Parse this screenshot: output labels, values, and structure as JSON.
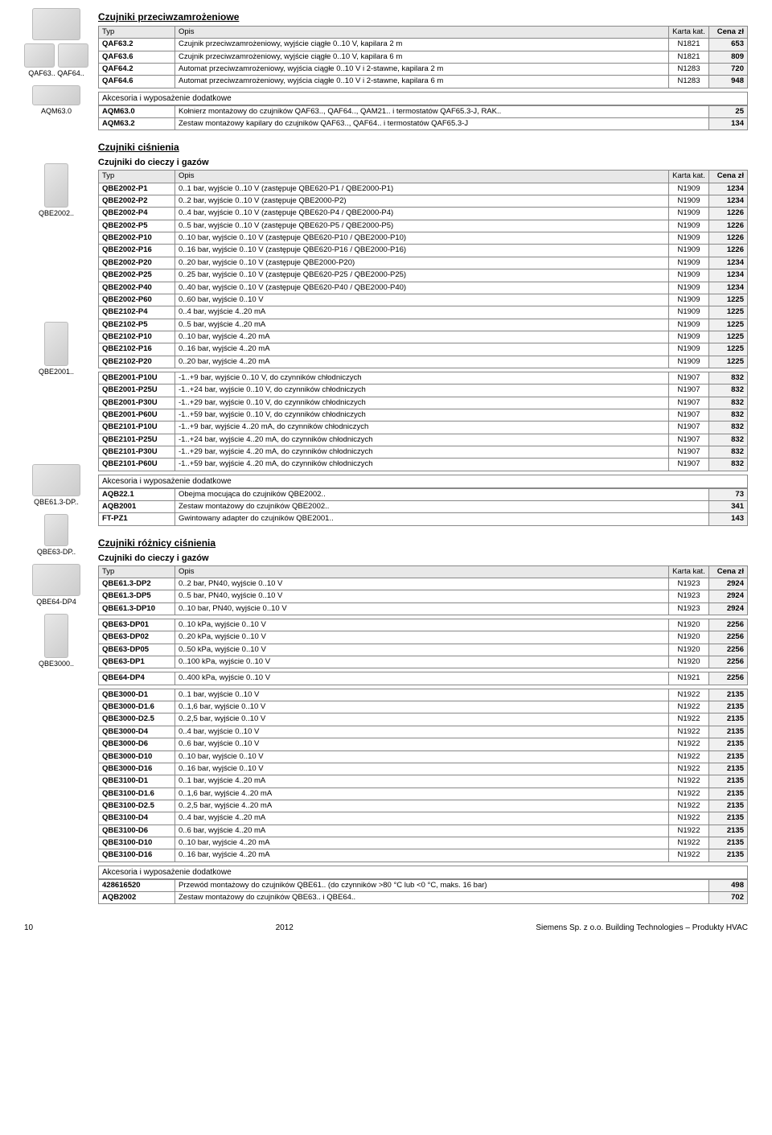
{
  "headers": {
    "typ": "Typ",
    "opis": "Opis",
    "kat": "Karta kat.",
    "cena": "Cena zł"
  },
  "akces_label": "Akcesoria i wyposażenie dodatkowe",
  "labels": {
    "qaf63": "QAF63..",
    "qaf64": "QAF64..",
    "aqm63": "AQM63.0",
    "qbe2002": "QBE2002..",
    "qbe2001": "QBE2001..",
    "qbe61": "QBE61.3-DP..",
    "qbe63": "QBE63-DP..",
    "qbe64": "QBE64-DP4",
    "qbe3000": "QBE3000.."
  },
  "sec1": {
    "title": "Czujniki przeciwzamrożeniowe",
    "rows": [
      {
        "t": "QAF63.2",
        "o": "Czujnik przeciwzamrożeniowy, wyjście ciągłe 0..10 V, kapilara 2 m",
        "k": "N1821",
        "c": "653"
      },
      {
        "t": "QAF63.6",
        "o": "Czujnik przeciwzamrożeniowy, wyjście ciągłe 0..10 V, kapilara 6 m",
        "k": "N1821",
        "c": "809"
      },
      {
        "t": "QAF64.2",
        "o": "Automat przeciwzamrożeniowy, wyjścia ciągłe 0..10 V i 2-stawne, kapilara 2 m",
        "k": "N1283",
        "c": "720"
      },
      {
        "t": "QAF64.6",
        "o": "Automat przeciwzamrożeniowy, wyjścia ciągłe 0..10 V i 2-stawne, kapilara 6 m",
        "k": "N1283",
        "c": "948"
      }
    ],
    "akces": [
      {
        "t": "AQM63.0",
        "o": "Kołnierz montażowy do czujników QAF63.., QAF64.., QAM21.. i termostatów QAF65.3-J, RAK..",
        "c": "25"
      },
      {
        "t": "AQM63.2",
        "o": "Zestaw montażowy kapilary do czujników QAF63.., QAF64.. i termostatów QAF65.3-J",
        "c": "134"
      }
    ]
  },
  "sec2": {
    "title": "Czujniki ciśnienia",
    "sub": "Czujniki do cieczy i gazów",
    "rows": [
      {
        "t": "QBE2002-P1",
        "o": "0..1 bar, wyjście 0..10 V                                                   (zastępuje QBE620-P1 / QBE2000-P1)",
        "k": "N1909",
        "c": "1234"
      },
      {
        "t": "QBE2002-P2",
        "o": "0..2 bar, wyjście 0..10 V                                                            (zastępuje QBE2000-P2)",
        "k": "N1909",
        "c": "1234"
      },
      {
        "t": "QBE2002-P4",
        "o": "0..4 bar, wyjście 0..10 V                                                   (zastępuje QBE620-P4 / QBE2000-P4)",
        "k": "N1909",
        "c": "1226"
      },
      {
        "t": "QBE2002-P5",
        "o": "0..5 bar, wyjście 0..10 V                                                   (zastępuje QBE620-P5 / QBE2000-P5)",
        "k": "N1909",
        "c": "1226"
      },
      {
        "t": "QBE2002-P10",
        "o": "0..10 bar, wyjście 0..10 V                                             (zastępuje QBE620-P10 / QBE2000-P10)",
        "k": "N1909",
        "c": "1226"
      },
      {
        "t": "QBE2002-P16",
        "o": "0..16 bar, wyjście 0..10 V                                             (zastępuje QBE620-P16 / QBE2000-P16)",
        "k": "N1909",
        "c": "1226"
      },
      {
        "t": "QBE2002-P20",
        "o": "0..20 bar, wyjście 0..10 V                                                          (zastępuje QBE2000-P20)",
        "k": "N1909",
        "c": "1234"
      },
      {
        "t": "QBE2002-P25",
        "o": "0..25 bar, wyjście 0..10 V                                             (zastępuje QBE620-P25 / QBE2000-P25)",
        "k": "N1909",
        "c": "1234"
      },
      {
        "t": "QBE2002-P40",
        "o": "0..40 bar, wyjście 0..10 V                                             (zastępuje QBE620-P40 / QBE2000-P40)",
        "k": "N1909",
        "c": "1234"
      },
      {
        "t": "QBE2002-P60",
        "o": "0..60 bar, wyjście 0..10 V",
        "k": "N1909",
        "c": "1225"
      },
      {
        "t": "QBE2102-P4",
        "o": "0..4 bar, wyjście 4..20 mA",
        "k": "N1909",
        "c": "1225"
      },
      {
        "t": "QBE2102-P5",
        "o": "0..5 bar, wyjście 4..20 mA",
        "k": "N1909",
        "c": "1225"
      },
      {
        "t": "QBE2102-P10",
        "o": "0..10 bar, wyjście 4..20 mA",
        "k": "N1909",
        "c": "1225"
      },
      {
        "t": "QBE2102-P16",
        "o": "0..16 bar, wyjście 4..20 mA",
        "k": "N1909",
        "c": "1225"
      },
      {
        "t": "QBE2102-P20",
        "o": "0..20 bar, wyjście 4..20 mA",
        "k": "N1909",
        "c": "1225"
      }
    ],
    "rows2": [
      {
        "t": "QBE2001-P10U",
        "o": "-1..+9 bar, wyjście 0..10 V, do czynników chłodniczych",
        "k": "N1907",
        "c": "832"
      },
      {
        "t": "QBE2001-P25U",
        "o": "-1..+24 bar, wyjście 0..10 V, do czynników chłodniczych",
        "k": "N1907",
        "c": "832"
      },
      {
        "t": "QBE2001-P30U",
        "o": "-1..+29 bar, wyjście 0..10 V, do czynników chłodniczych",
        "k": "N1907",
        "c": "832"
      },
      {
        "t": "QBE2001-P60U",
        "o": "-1..+59 bar, wyjście 0..10 V, do czynników chłodniczych",
        "k": "N1907",
        "c": "832"
      },
      {
        "t": "QBE2101-P10U",
        "o": "-1..+9 bar, wyjście 4..20 mA, do czynników chłodniczych",
        "k": "N1907",
        "c": "832"
      },
      {
        "t": "QBE2101-P25U",
        "o": "-1..+24 bar, wyjście 4..20 mA, do czynników chłodniczych",
        "k": "N1907",
        "c": "832"
      },
      {
        "t": "QBE2101-P30U",
        "o": "-1..+29 bar, wyjście 4..20 mA, do czynników chłodniczych",
        "k": "N1907",
        "c": "832"
      },
      {
        "t": "QBE2101-P60U",
        "o": "-1..+59 bar, wyjście 4..20 mA, do czynników chłodniczych",
        "k": "N1907",
        "c": "832"
      }
    ],
    "akces": [
      {
        "t": "AQB22.1",
        "o": "Obejma mocująca do czujników QBE2002..",
        "c": "73"
      },
      {
        "t": "AQB2001",
        "o": "Zestaw montażowy do czujników QBE2002..",
        "c": "341"
      },
      {
        "t": "FT-PZ1",
        "o": "Gwintowany adapter do czujników QBE2001..",
        "c": "143"
      }
    ]
  },
  "sec3": {
    "title": "Czujniki różnicy ciśnienia",
    "sub": "Czujniki do cieczy i gazów",
    "g1": [
      {
        "t": "QBE61.3-DP2",
        "o": "0..2 bar, PN40, wyjście 0..10 V",
        "k": "N1923",
        "c": "2924"
      },
      {
        "t": "QBE61.3-DP5",
        "o": "0..5 bar, PN40, wyjście 0..10 V",
        "k": "N1923",
        "c": "2924"
      },
      {
        "t": "QBE61.3-DP10",
        "o": "0..10 bar, PN40, wyjście 0..10 V",
        "k": "N1923",
        "c": "2924"
      }
    ],
    "g2": [
      {
        "t": "QBE63-DP01",
        "o": "0..10 kPa, wyjście 0..10 V",
        "k": "N1920",
        "c": "2256"
      },
      {
        "t": "QBE63-DP02",
        "o": "0..20 kPa, wyjście 0..10 V",
        "k": "N1920",
        "c": "2256"
      },
      {
        "t": "QBE63-DP05",
        "o": "0..50 kPa, wyjście 0..10 V",
        "k": "N1920",
        "c": "2256"
      },
      {
        "t": "QBE63-DP1",
        "o": "0..100 kPa, wyjście 0..10 V",
        "k": "N1920",
        "c": "2256"
      }
    ],
    "g3": [
      {
        "t": "QBE64-DP4",
        "o": "0..400 kPa, wyjście 0..10 V",
        "k": "N1921",
        "c": "2256"
      }
    ],
    "g4": [
      {
        "t": "QBE3000-D1",
        "o": "0..1 bar, wyjście 0..10 V",
        "k": "N1922",
        "c": "2135"
      },
      {
        "t": "QBE3000-D1.6",
        "o": "0..1,6 bar, wyjście 0..10 V",
        "k": "N1922",
        "c": "2135"
      },
      {
        "t": "QBE3000-D2.5",
        "o": "0..2,5 bar, wyjście 0..10 V",
        "k": "N1922",
        "c": "2135"
      },
      {
        "t": "QBE3000-D4",
        "o": "0..4 bar, wyjście 0..10 V",
        "k": "N1922",
        "c": "2135"
      },
      {
        "t": "QBE3000-D6",
        "o": "0..6 bar, wyjście 0..10 V",
        "k": "N1922",
        "c": "2135"
      },
      {
        "t": "QBE3000-D10",
        "o": "0..10 bar, wyjście 0..10 V",
        "k": "N1922",
        "c": "2135"
      },
      {
        "t": "QBE3000-D16",
        "o": "0..16 bar, wyjście 0..10 V",
        "k": "N1922",
        "c": "2135"
      },
      {
        "t": "QBE3100-D1",
        "o": "0..1 bar, wyjście 4..20 mA",
        "k": "N1922",
        "c": "2135"
      },
      {
        "t": "QBE3100-D1.6",
        "o": "0..1,6 bar, wyjście 4..20 mA",
        "k": "N1922",
        "c": "2135"
      },
      {
        "t": "QBE3100-D2.5",
        "o": "0..2,5 bar, wyjście 4..20 mA",
        "k": "N1922",
        "c": "2135"
      },
      {
        "t": "QBE3100-D4",
        "o": "0..4 bar, wyjście 4..20 mA",
        "k": "N1922",
        "c": "2135"
      },
      {
        "t": "QBE3100-D6",
        "o": "0..6 bar, wyjście 4..20 mA",
        "k": "N1922",
        "c": "2135"
      },
      {
        "t": "QBE3100-D10",
        "o": "0..10 bar, wyjście 4..20 mA",
        "k": "N1922",
        "c": "2135"
      },
      {
        "t": "QBE3100-D16",
        "o": "0..16 bar, wyjście 4..20 mA",
        "k": "N1922",
        "c": "2135"
      }
    ],
    "akces": [
      {
        "t": "428616520",
        "o": "Przewód montażowy do czujników QBE61.. (do czynników >80 °C lub <0 °C, maks. 16 bar)",
        "c": "498"
      },
      {
        "t": "AQB2002",
        "o": "Zestaw montażowy do czujników QBE63.. i QBE64..",
        "c": "702"
      }
    ]
  },
  "footer": {
    "page": "10",
    "year": "2012",
    "right": "Siemens Sp. z o.o. Building Technologies – Produkty HVAC"
  }
}
